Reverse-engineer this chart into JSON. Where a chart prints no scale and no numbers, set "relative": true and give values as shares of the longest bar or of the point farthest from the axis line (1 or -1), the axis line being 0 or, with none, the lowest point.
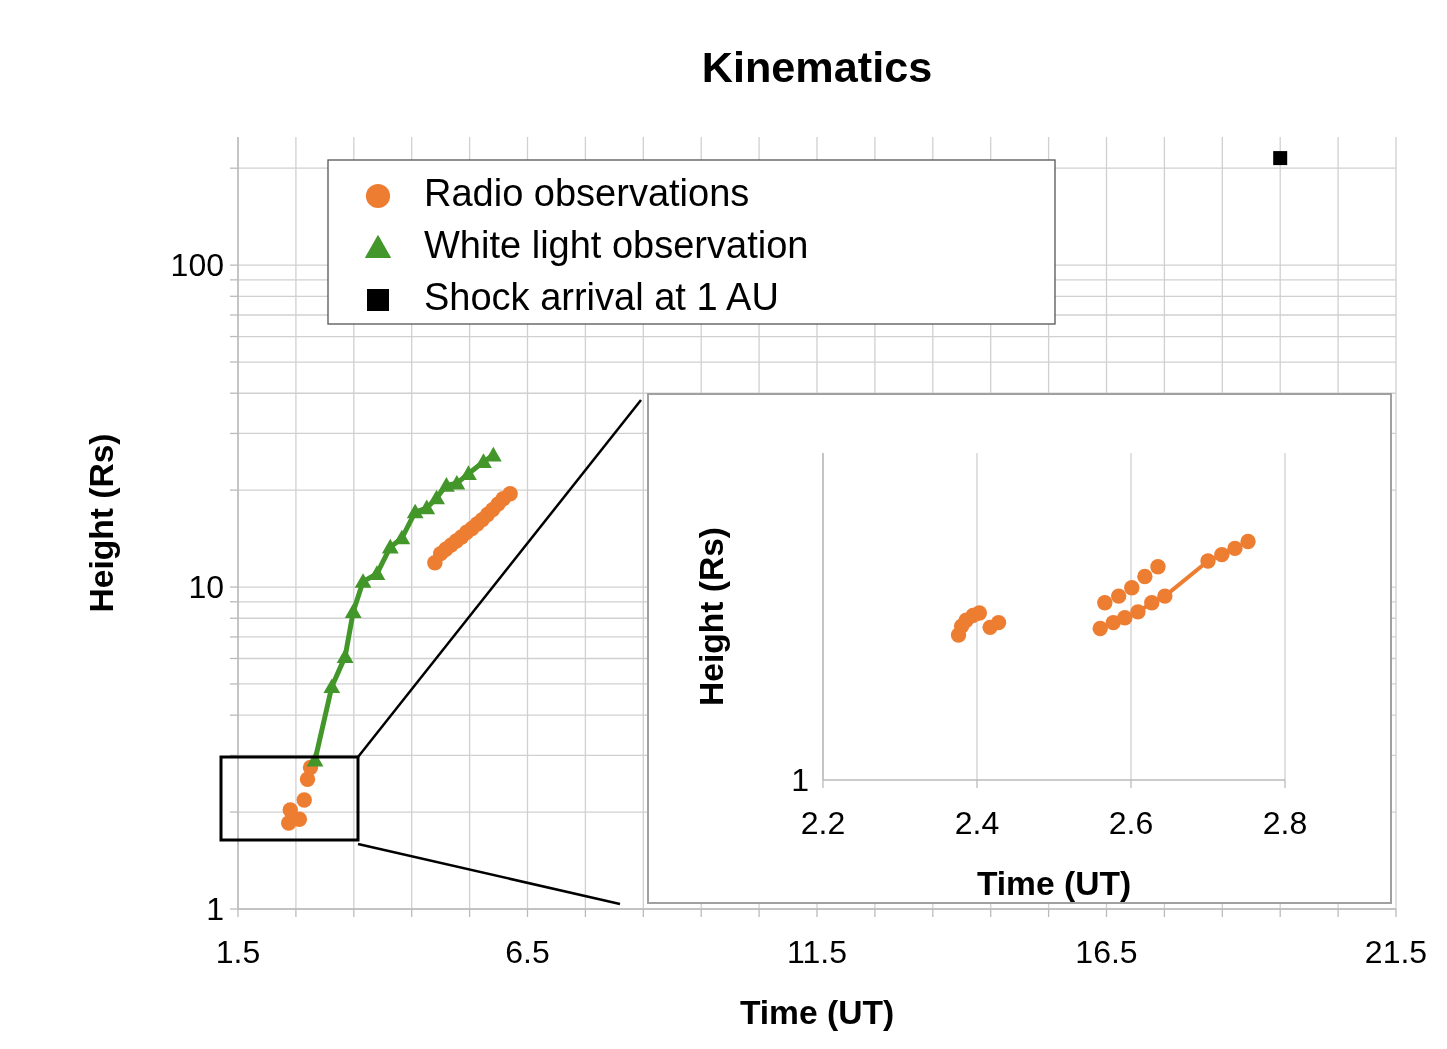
{
  "chart_data": [
    {
      "type": "scatter",
      "title": "Kinematics",
      "xlabel": "Time (UT)",
      "ylabel": "Height (Rs)",
      "log": "y",
      "grid": true,
      "legend": "top left",
      "xlim": [
        1.5,
        21.5
      ],
      "xticks": [
        1.5,
        {
          "value": 2.5,
          "label": null
        },
        {
          "value": 3.5,
          "label": null
        },
        {
          "value": 4.5,
          "label": null
        },
        {
          "value": 5.5,
          "label": null
        },
        6.5,
        {
          "value": 7.5,
          "label": null
        },
        {
          "value": 8.5,
          "label": null
        },
        {
          "value": 9.5,
          "label": null
        },
        {
          "value": 10.5,
          "label": null
        },
        11.5,
        {
          "value": 12.5,
          "label": null
        },
        {
          "value": 13.5,
          "label": null
        },
        {
          "value": 14.5,
          "label": null
        },
        {
          "value": 15.5,
          "label": null
        },
        16.5,
        {
          "value": 17.5,
          "label": null
        },
        {
          "value": 18.5,
          "label": null
        },
        {
          "value": 19.5,
          "label": null
        },
        {
          "value": 20.5,
          "label": null
        },
        21.5
      ],
      "ylim": [
        1,
        250
      ],
      "yticks": [
        1,
        {
          "value": 2,
          "label": null
        },
        {
          "value": 3,
          "label": null
        },
        {
          "value": 4,
          "label": null
        },
        {
          "value": 5,
          "label": null
        },
        {
          "value": 6,
          "label": null
        },
        {
          "value": 7,
          "label": null
        },
        {
          "value": 8,
          "label": null
        },
        {
          "value": 9,
          "label": null
        },
        10,
        {
          "value": 20,
          "label": null
        },
        {
          "value": 30,
          "label": null
        },
        {
          "value": 40,
          "label": null
        },
        {
          "value": 50,
          "label": null
        },
        {
          "value": 60,
          "label": null
        },
        {
          "value": 70,
          "label": null
        },
        {
          "value": 80,
          "label": null
        },
        {
          "value": 90,
          "label": null
        },
        100,
        {
          "value": 200,
          "label": null
        }
      ],
      "series": [
        {
          "name": "Radio observations",
          "type": "scatter",
          "marker": "circle",
          "color": "#ed7d31",
          "x": [
            2.376,
            2.403,
            2.56,
            2.644,
            2.7,
            2.752,
            4.9,
            5.0,
            5.09,
            5.18,
            5.27,
            5.36,
            5.45,
            5.54,
            5.63,
            5.72,
            5.81,
            5.9,
            5.99,
            6.08,
            6.2
          ],
          "values": [
            1.85,
            2.03,
            1.9,
            2.18,
            2.53,
            2.75,
            11.9,
            12.7,
            13.1,
            13.5,
            13.9,
            14.3,
            14.8,
            15.2,
            15.7,
            16.2,
            16.8,
            17.4,
            18.1,
            18.8,
            19.5
          ]
        },
        {
          "name": "White light observation",
          "type": "line",
          "marker": "triangle",
          "color": "#43972a",
          "x": [
            2.83,
            3.12,
            3.35,
            3.49,
            3.66,
            3.9,
            4.13,
            4.33,
            4.56,
            4.76,
            4.93,
            5.1,
            5.28,
            5.48,
            5.74,
            5.91
          ],
          "values": [
            2.9,
            4.9,
            6.08,
            8.38,
            10.4,
            11.0,
            13.3,
            14.2,
            17.1,
            17.6,
            18.9,
            20.7,
            21.0,
            22.5,
            24.5,
            25.7
          ]
        },
        {
          "name": "Shock arrival at 1 AU",
          "type": "scatter",
          "marker": "square",
          "color": "#000000",
          "x": [
            19.5
          ],
          "values": [
            215
          ]
        }
      ]
    },
    {
      "type": "scatter",
      "xlabel": "Time (UT)",
      "ylabel": "Height (Rs)",
      "relative": true,
      "grid": "x",
      "marker": "circle",
      "annotations": [
        "1"
      ],
      "xlim": [
        2.2,
        2.8
      ],
      "xticks": [
        2.2,
        2.4,
        2.6,
        2.8
      ],
      "series": [
        {
          "type": "scatter",
          "color": "#ed7d31",
          "x": [
            2.376,
            2.38,
            2.386,
            2.395,
            2.403,
            2.417,
            2.428
          ],
          "values": [
            0.608,
            0.645,
            0.67,
            0.69,
            0.7,
            0.64,
            0.66
          ]
        },
        {
          "type": "scatter",
          "color": "#ed7d31",
          "x": [
            2.566,
            2.584,
            2.601,
            2.618,
            2.635
          ],
          "values": [
            0.743,
            0.771,
            0.806,
            0.853,
            0.894
          ]
        },
        {
          "type": "line",
          "color": "#ed7d31",
          "x": [
            2.56,
            2.577,
            2.592,
            2.609,
            2.627,
            2.644,
            2.7,
            2.718,
            2.735,
            2.752
          ],
          "values": [
            0.635,
            0.66,
            0.68,
            0.705,
            0.743,
            0.771,
            0.918,
            0.945,
            0.971,
            1
          ]
        }
      ]
    }
  ]
}
